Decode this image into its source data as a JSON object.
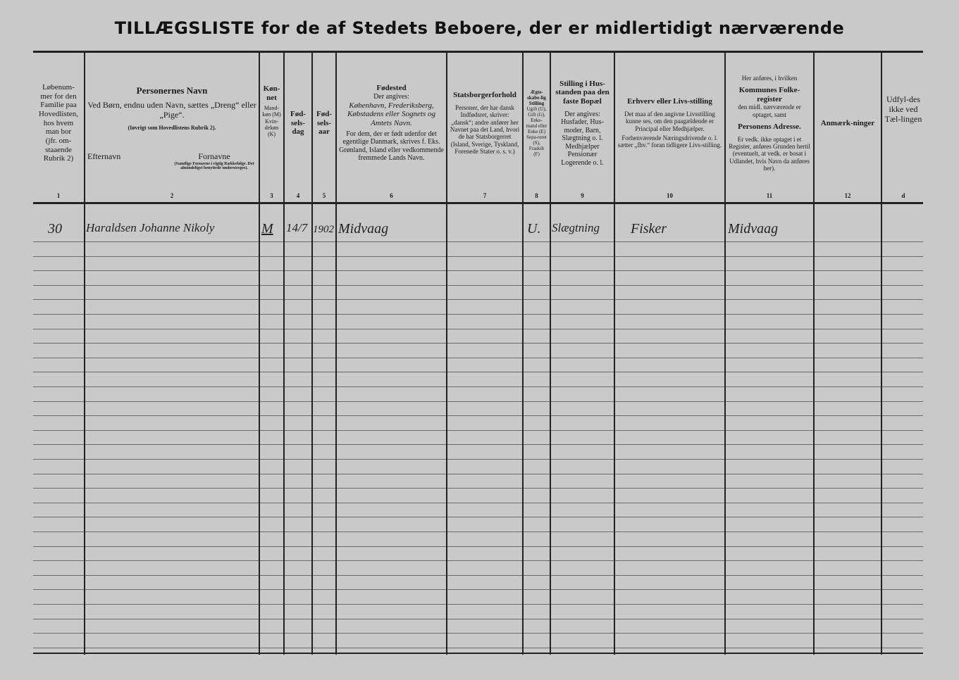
{
  "title": "TILLÆGSLISTE for de af Stedets Beboere, der er midlertidigt nærværende",
  "columns": [
    {
      "num": "1",
      "lines": [
        "Løbenum-",
        "mer for den",
        "Familie paa",
        "Hovedlisten,",
        "hos hvem",
        "man bor",
        "(jfr. om-",
        "staaende",
        "Rubrik 2)"
      ]
    },
    {
      "num": "2",
      "heading": "Personernes Navn",
      "text": "Ved Børn, endnu uden Navn, sættes „Dreng“ eller „Pige“.",
      "note": "(Iøvrigt som Hovedlistens Rubrik 2).",
      "sub_left": "Efternavn",
      "sub_right": "Fornavne",
      "sub_note": "(Samtlige Fornavne i rigtig Rækkefølge. Det almindeligst benyttede understreges)."
    },
    {
      "num": "3",
      "heading": "Køn-net",
      "text": "Mand-køn (M) Kvin-dekøn (K)"
    },
    {
      "num": "4",
      "heading": "Fød-sels-dag"
    },
    {
      "num": "5",
      "heading": "Fød-sels-aar"
    },
    {
      "num": "6",
      "heading": "Fødested",
      "text": "Der angives:",
      "text2": "København, Frederiksberg, Købstadens eller Sognets og Amtets Navn.",
      "note": "For dem, der er født udenfor det egentlige Danmark, skrives f. Eks. Grønland, Island eller vedkommende fremmede Lands Navn."
    },
    {
      "num": "7",
      "heading": "Statsborgerforhold",
      "text": "Personer, der har dansk Indfødsret, skriver: „dansk“; andre anfører her Navnet paa det Land, hvori de har Statsborgerret (Island, Sverige, Tyskland, Forenede Stater o. s. v.)"
    },
    {
      "num": "8",
      "heading": "Ægte-skabe-lig Stilling",
      "text": "Ugift (U), Gift (G), Enke-mand eller Enke (E) Sepa-reret (S), Fraskilt (F)"
    },
    {
      "num": "9",
      "heading": "Stilling i Hus-standen paa den faste Bopæl",
      "text": "Der angives: Husfader, Hus-moder, Barn, Slægtning o. l. Medhjælper Pensionær Logerende o. l."
    },
    {
      "num": "10",
      "heading": "Erhverv eller Livs-stilling",
      "text": "Det maa af den angivne Livsstilling kunne ses, om den paagældende er Principal eller Medhjælper.",
      "note": "Forhenværende Næringsdrivende o. l. sætter „fhv.“ foran tidligere Livs-stilling."
    },
    {
      "num": "11",
      "pre": "Her anføres, i hvilken",
      "heading": "Kommunes Folke-register",
      "text": "den midl. nærværende er optaget, samt",
      "heading2": "Personens Adresse.",
      "note": "Er vedk. ikke optaget i et Register, anføres Grunden hertil (eventuelt, at vedk. er bosat i Udlandet, hvis Navn da anføres her)."
    },
    {
      "num": "12",
      "heading": "Anmærk-ninger"
    },
    {
      "num": "d",
      "text": "Udfyl-des ikke ved Tæl-lingen"
    }
  ],
  "entries": [
    {
      "lobenummer": "30",
      "name": "Haraldsen Johanne Nikoly",
      "sex": "M",
      "birth_day": "14/7",
      "birth_year": "1902",
      "birthplace": "Midvaag",
      "marital": "U.",
      "household_position": "Slægtning",
      "occupation": "Fisker",
      "register": "Midvaag"
    }
  ]
}
